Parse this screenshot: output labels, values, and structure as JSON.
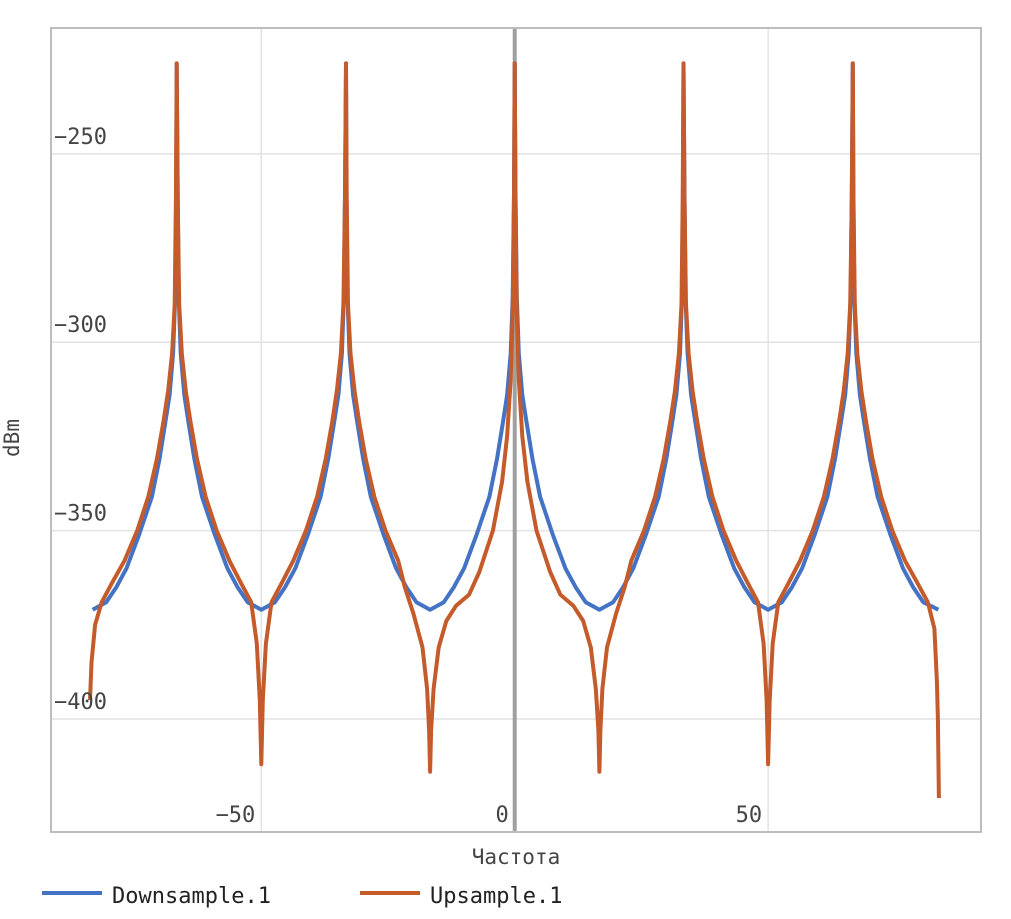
{
  "chart_data": {
    "type": "line",
    "title": "",
    "xlabel": "Частота",
    "ylabel": "dBm",
    "xlim": [
      -91.5,
      92
    ],
    "ylim": [
      -430,
      -216.6
    ],
    "x_ticks": [
      -50,
      0,
      50
    ],
    "x_tick_labels": [
      "−50",
      "0",
      "50"
    ],
    "y_ticks": [
      -250,
      -300,
      -350,
      -400
    ],
    "y_tick_labels": [
      "−250",
      "−300",
      "−350",
      "−400"
    ],
    "grid": true,
    "zero_line": true,
    "legend_position": "bottom-left",
    "series": [
      {
        "name": "Downsample.1",
        "color": "#4472c4",
        "points": [
          [
            -83.3,
            -371
          ],
          [
            -80.6,
            -369
          ],
          [
            -78.6,
            -365
          ],
          [
            -76.6,
            -360
          ],
          [
            -74.1,
            -351
          ],
          [
            -71.6,
            -341
          ],
          [
            -70.1,
            -331
          ],
          [
            -68.9,
            -321
          ],
          [
            -68.1,
            -314
          ],
          [
            -67.4,
            -303
          ],
          [
            -67.0,
            -288
          ],
          [
            -66.8,
            -260
          ],
          [
            -66.7,
            -226
          ],
          [
            -66.5,
            -260
          ],
          [
            -66.3,
            -288
          ],
          [
            -65.9,
            -303
          ],
          [
            -65.2,
            -314
          ],
          [
            -64.4,
            -321
          ],
          [
            -63.2,
            -331
          ],
          [
            -61.7,
            -341
          ],
          [
            -59.2,
            -351
          ],
          [
            -56.7,
            -360
          ],
          [
            -54.7,
            -365
          ],
          [
            -52.7,
            -369
          ],
          [
            -50,
            -371
          ],
          [
            -47.3,
            -369
          ],
          [
            -45.3,
            -365
          ],
          [
            -43.3,
            -360
          ],
          [
            -40.8,
            -351
          ],
          [
            -38.3,
            -341
          ],
          [
            -36.8,
            -331
          ],
          [
            -35.6,
            -321
          ],
          [
            -34.8,
            -314
          ],
          [
            -34.1,
            -303
          ],
          [
            -33.7,
            -288
          ],
          [
            -33.5,
            -260
          ],
          [
            -33.3,
            -226
          ],
          [
            -33.2,
            -260
          ],
          [
            -33.0,
            -288
          ],
          [
            -32.6,
            -303
          ],
          [
            -31.9,
            -314
          ],
          [
            -31.1,
            -321
          ],
          [
            -29.9,
            -331
          ],
          [
            -28.4,
            -341
          ],
          [
            -25.9,
            -351
          ],
          [
            -23.4,
            -360
          ],
          [
            -21.4,
            -365
          ],
          [
            -19.4,
            -369
          ],
          [
            -16.7,
            -371
          ],
          [
            -14.0,
            -369
          ],
          [
            -12.0,
            -365
          ],
          [
            -10.0,
            -360
          ],
          [
            -7.5,
            -351
          ],
          [
            -5.0,
            -341
          ],
          [
            -3.5,
            -331
          ],
          [
            -2.3,
            -321
          ],
          [
            -1.5,
            -314
          ],
          [
            -0.8,
            -303
          ],
          [
            -0.4,
            -288
          ],
          [
            -0.15,
            -260
          ],
          [
            0,
            -226
          ],
          [
            0.15,
            -260
          ],
          [
            0.4,
            -288
          ],
          [
            0.8,
            -303
          ],
          [
            1.5,
            -314
          ],
          [
            2.3,
            -321
          ],
          [
            3.5,
            -331
          ],
          [
            5,
            -341
          ],
          [
            7.5,
            -351
          ],
          [
            10,
            -360
          ],
          [
            12,
            -365
          ],
          [
            14,
            -369
          ],
          [
            16.7,
            -371
          ],
          [
            19.4,
            -369
          ],
          [
            21.4,
            -365
          ],
          [
            23.4,
            -360
          ],
          [
            25.9,
            -351
          ],
          [
            28.4,
            -341
          ],
          [
            29.9,
            -331
          ],
          [
            31.1,
            -321
          ],
          [
            31.9,
            -314
          ],
          [
            32.6,
            -303
          ],
          [
            33.0,
            -288
          ],
          [
            33.2,
            -260
          ],
          [
            33.3,
            -226
          ],
          [
            33.5,
            -260
          ],
          [
            33.7,
            -288
          ],
          [
            34.1,
            -303
          ],
          [
            34.8,
            -314
          ],
          [
            35.6,
            -321
          ],
          [
            36.8,
            -331
          ],
          [
            38.3,
            -341
          ],
          [
            40.8,
            -351
          ],
          [
            43.3,
            -360
          ],
          [
            45.3,
            -365
          ],
          [
            47.3,
            -369
          ],
          [
            50,
            -371
          ],
          [
            52.7,
            -369
          ],
          [
            54.7,
            -365
          ],
          [
            56.7,
            -360
          ],
          [
            59.2,
            -351
          ],
          [
            61.7,
            -341
          ],
          [
            63.2,
            -331
          ],
          [
            64.4,
            -321
          ],
          [
            65.2,
            -314
          ],
          [
            65.9,
            -303
          ],
          [
            66.3,
            -288
          ],
          [
            66.5,
            -260
          ],
          [
            66.7,
            -226
          ],
          [
            66.8,
            -260
          ],
          [
            67.0,
            -288
          ],
          [
            67.4,
            -303
          ],
          [
            68.1,
            -314
          ],
          [
            68.9,
            -321
          ],
          [
            70.1,
            -331
          ],
          [
            71.6,
            -341
          ],
          [
            74.1,
            -351
          ],
          [
            76.6,
            -360
          ],
          [
            78.6,
            -365
          ],
          [
            80.6,
            -369
          ],
          [
            83.6,
            -371
          ]
        ]
      },
      {
        "name": "Upsample.1",
        "color": "#c55a2b",
        "points": [
          [
            -83.8,
            -395
          ],
          [
            -83.5,
            -385
          ],
          [
            -82.8,
            -375
          ],
          [
            -81.5,
            -369
          ],
          [
            -79.5,
            -364
          ],
          [
            -77,
            -358
          ],
          [
            -74.5,
            -350
          ],
          [
            -72.3,
            -341
          ],
          [
            -70.6,
            -331
          ],
          [
            -69.3,
            -321
          ],
          [
            -68.4,
            -313
          ],
          [
            -67.6,
            -303
          ],
          [
            -67.1,
            -290
          ],
          [
            -66.85,
            -262
          ],
          [
            -66.7,
            -226
          ],
          [
            -66.5,
            -262
          ],
          [
            -66.2,
            -290
          ],
          [
            -65.7,
            -303
          ],
          [
            -64.9,
            -313
          ],
          [
            -64.0,
            -321
          ],
          [
            -62.7,
            -331
          ],
          [
            -61.0,
            -341
          ],
          [
            -58.8,
            -350
          ],
          [
            -56.3,
            -358
          ],
          [
            -54,
            -364
          ],
          [
            -52,
            -369
          ],
          [
            -50.9,
            -380
          ],
          [
            -50.3,
            -395
          ],
          [
            -50,
            -412
          ],
          [
            -49.7,
            -395
          ],
          [
            -49.1,
            -380
          ],
          [
            -48,
            -369
          ],
          [
            -46,
            -364
          ],
          [
            -43.7,
            -358
          ],
          [
            -41.2,
            -350
          ],
          [
            -39,
            -341
          ],
          [
            -37.3,
            -331
          ],
          [
            -36,
            -321
          ],
          [
            -35.1,
            -313
          ],
          [
            -34.3,
            -303
          ],
          [
            -33.8,
            -290
          ],
          [
            -33.5,
            -262
          ],
          [
            -33.3,
            -226
          ],
          [
            -33.15,
            -262
          ],
          [
            -32.9,
            -290
          ],
          [
            -32.4,
            -303
          ],
          [
            -31.6,
            -313
          ],
          [
            -30.7,
            -321
          ],
          [
            -29.4,
            -331
          ],
          [
            -27.7,
            -341
          ],
          [
            -25.5,
            -350
          ],
          [
            -23,
            -358
          ],
          [
            -21.7,
            -365
          ],
          [
            -20,
            -372
          ],
          [
            -18.2,
            -381
          ],
          [
            -17.3,
            -392
          ],
          [
            -16.9,
            -403
          ],
          [
            -16.7,
            -414
          ],
          [
            -16.5,
            -403
          ],
          [
            -16,
            -392
          ],
          [
            -15,
            -381
          ],
          [
            -13.5,
            -374
          ],
          [
            -11.6,
            -370
          ],
          [
            -9,
            -367
          ],
          [
            -7,
            -361
          ],
          [
            -4.3,
            -350
          ],
          [
            -2.5,
            -337
          ],
          [
            -1.5,
            -325
          ],
          [
            -0.8,
            -310
          ],
          [
            -0.4,
            -292
          ],
          [
            -0.15,
            -262
          ],
          [
            0,
            -226
          ],
          [
            0.15,
            -262
          ],
          [
            0.4,
            -292
          ],
          [
            0.8,
            -310
          ],
          [
            1.5,
            -325
          ],
          [
            2.5,
            -337
          ],
          [
            4.3,
            -350
          ],
          [
            7,
            -361
          ],
          [
            9,
            -367
          ],
          [
            11.6,
            -370
          ],
          [
            13.5,
            -374
          ],
          [
            15,
            -381
          ],
          [
            16,
            -392
          ],
          [
            16.5,
            -403
          ],
          [
            16.7,
            -414
          ],
          [
            16.9,
            -403
          ],
          [
            17.3,
            -392
          ],
          [
            18.2,
            -381
          ],
          [
            20,
            -372
          ],
          [
            21.7,
            -365
          ],
          [
            23,
            -358
          ],
          [
            25.5,
            -350
          ],
          [
            27.7,
            -341
          ],
          [
            29.4,
            -331
          ],
          [
            30.7,
            -321
          ],
          [
            31.6,
            -313
          ],
          [
            32.4,
            -303
          ],
          [
            32.9,
            -290
          ],
          [
            33.15,
            -262
          ],
          [
            33.3,
            -226
          ],
          [
            33.5,
            -262
          ],
          [
            33.8,
            -290
          ],
          [
            34.3,
            -303
          ],
          [
            35.1,
            -313
          ],
          [
            36,
            -321
          ],
          [
            37.3,
            -331
          ],
          [
            39,
            -341
          ],
          [
            41.2,
            -350
          ],
          [
            43.7,
            -358
          ],
          [
            46,
            -364
          ],
          [
            48,
            -369
          ],
          [
            49.1,
            -380
          ],
          [
            49.7,
            -395
          ],
          [
            50,
            -412
          ],
          [
            50.3,
            -395
          ],
          [
            50.9,
            -380
          ],
          [
            52,
            -369
          ],
          [
            54,
            -364
          ],
          [
            56.3,
            -358
          ],
          [
            58.8,
            -350
          ],
          [
            61,
            -341
          ],
          [
            62.7,
            -331
          ],
          [
            64,
            -321
          ],
          [
            64.9,
            -313
          ],
          [
            65.7,
            -303
          ],
          [
            66.2,
            -290
          ],
          [
            66.5,
            -262
          ],
          [
            66.7,
            -226
          ],
          [
            66.85,
            -262
          ],
          [
            67.1,
            -290
          ],
          [
            67.6,
            -303
          ],
          [
            68.4,
            -313
          ],
          [
            69.3,
            -321
          ],
          [
            70.6,
            -331
          ],
          [
            72.3,
            -341
          ],
          [
            74.5,
            -350
          ],
          [
            77,
            -358
          ],
          [
            79.5,
            -364
          ],
          [
            81.5,
            -369
          ],
          [
            82.8,
            -376
          ],
          [
            83.3,
            -390
          ],
          [
            83.5,
            -400
          ],
          [
            83.7,
            -421
          ]
        ]
      }
    ]
  }
}
